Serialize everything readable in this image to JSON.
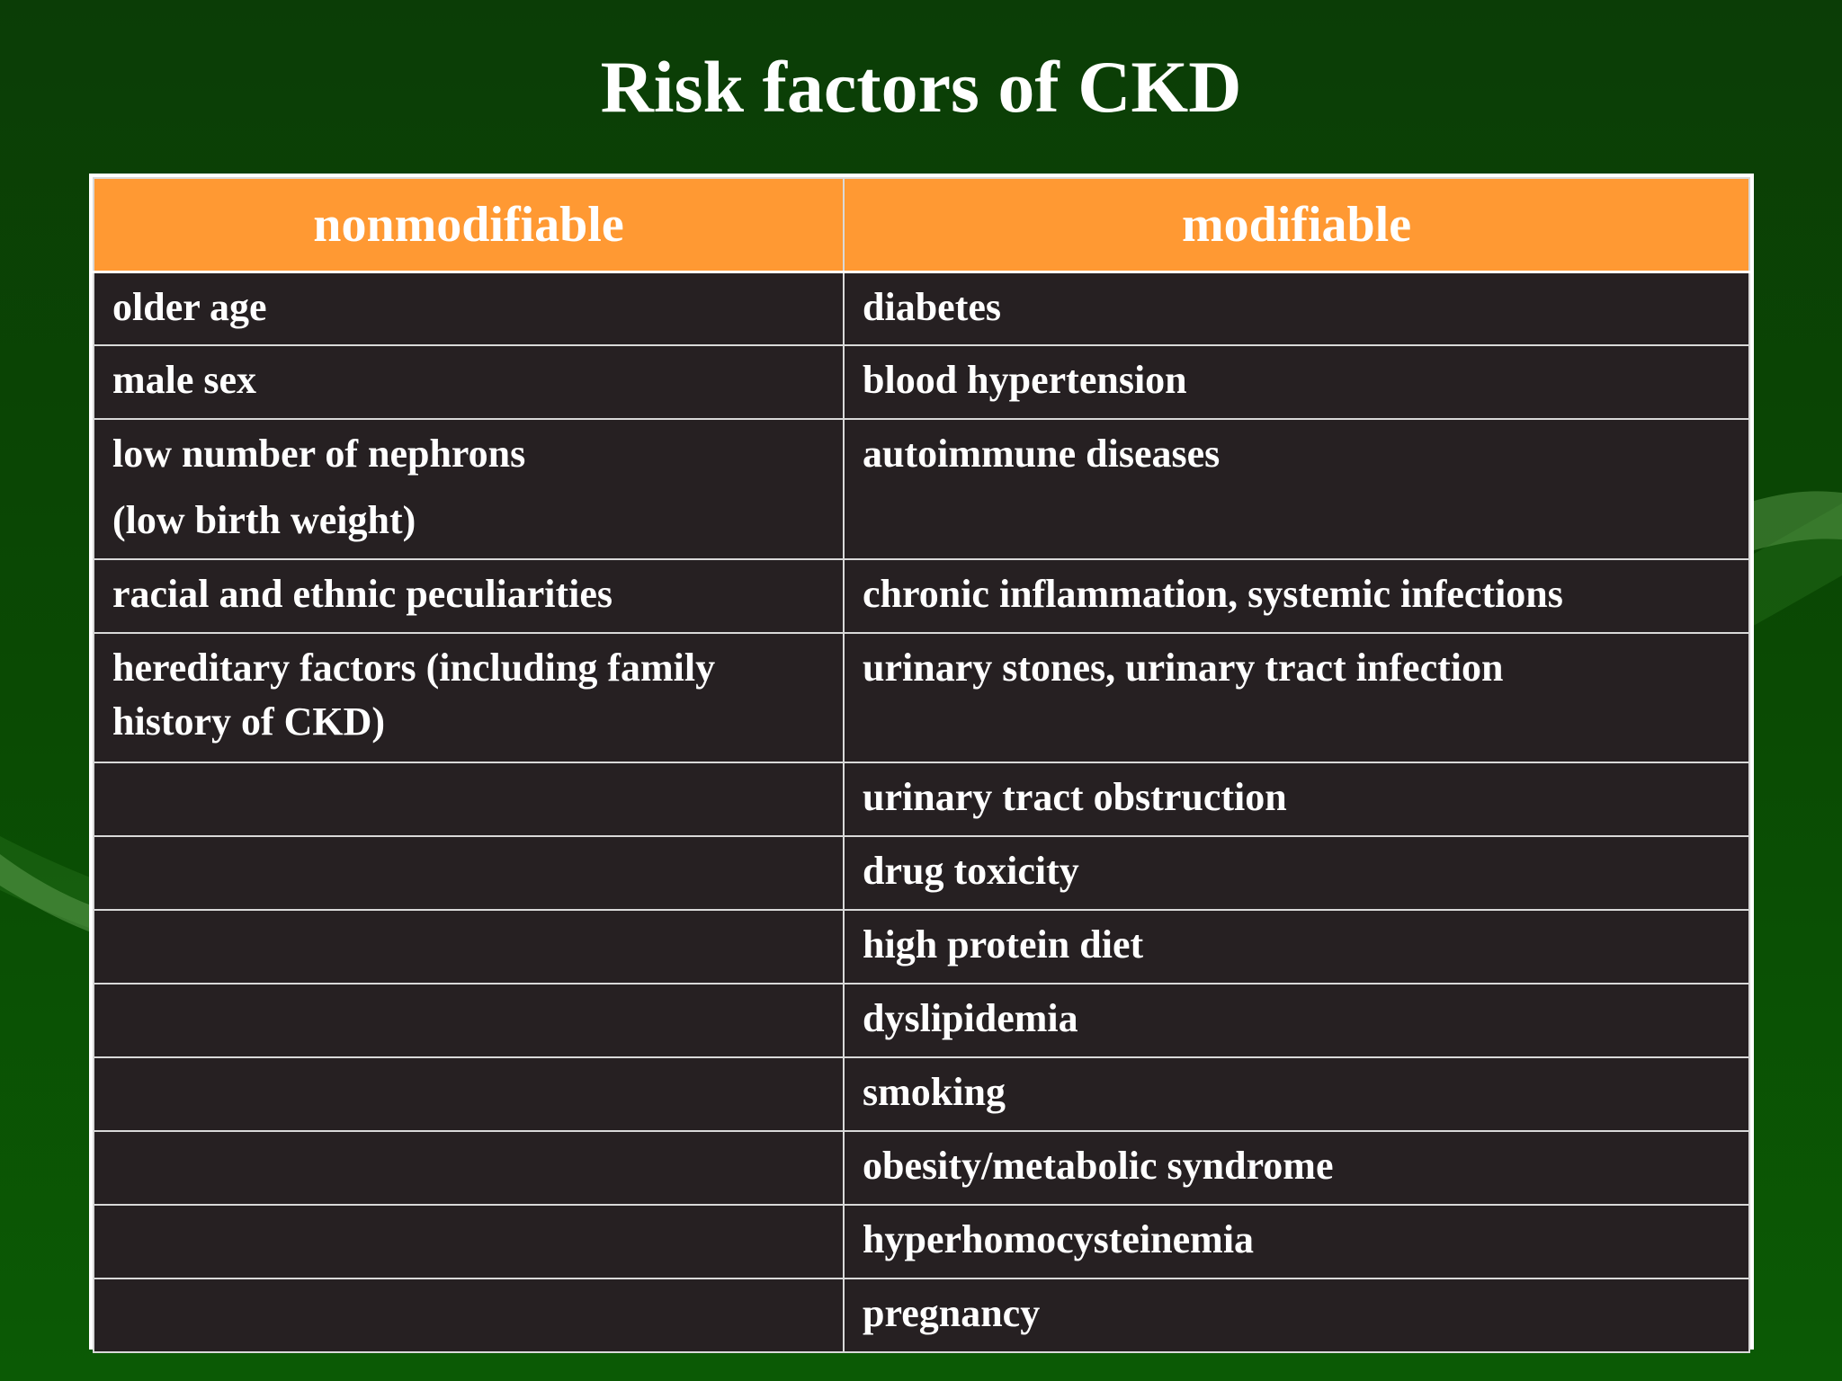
{
  "slide": {
    "title": "Risk factors of CKD"
  },
  "table": {
    "headers": [
      "nonmodifiable",
      "modifiable"
    ],
    "rows": [
      [
        "older age",
        "diabetes"
      ],
      [
        "male sex",
        "blood hypertension"
      ],
      [
        [
          "low number of  nephrons",
          "(low birth weight)"
        ],
        "autoimmune diseases"
      ],
      [
        "racial and ethnic peculiarities",
        "chronic inflammation, systemic infections"
      ],
      [
        "hereditary factors (including family history of  CKD)",
        "urinary stones, urinary tract infection"
      ],
      [
        "",
        "urinary tract obstruction"
      ],
      [
        "",
        "drug toxicity"
      ],
      [
        "",
        "high protein diet"
      ],
      [
        "",
        "dyslipidemia"
      ],
      [
        "",
        "smoking"
      ],
      [
        "",
        "obesity/metabolic syndrome"
      ],
      [
        "",
        "hyperhomocysteinemia"
      ],
      [
        "",
        "pregnancy"
      ]
    ]
  },
  "colors": {
    "background": "#0a4a03",
    "header": "#ff9933",
    "cell": "#262022",
    "text": "#ffffff"
  }
}
